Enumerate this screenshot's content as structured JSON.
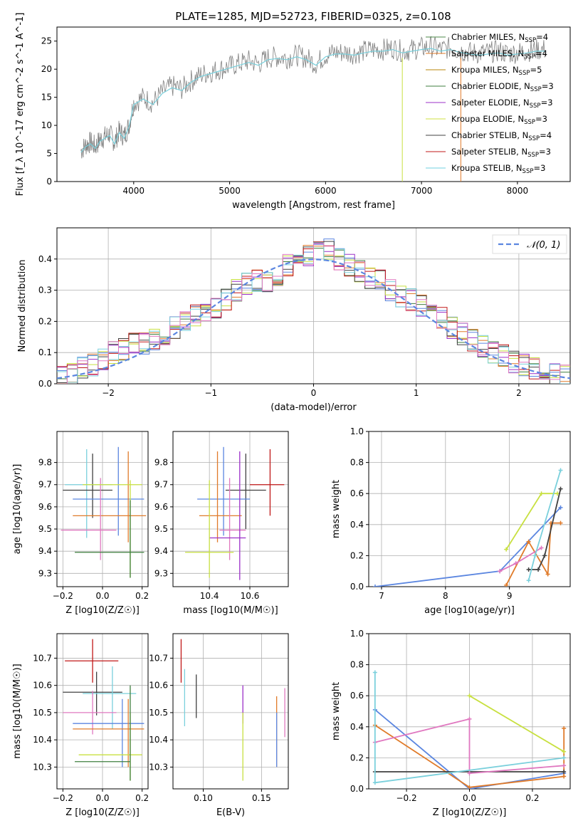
{
  "figure": {
    "title": "PLATE=1285, MJD=52723, FIBERID=0325, z=0.108"
  },
  "legend": [
    {
      "label": "Chabrier MILES, N",
      "sub": "SSP",
      "suffix": "=4",
      "color": "#4c8a48"
    },
    {
      "label": "Salpeter MILES, N",
      "sub": "SSP",
      "suffix": "=4",
      "color": "#e07b2a"
    },
    {
      "label": "Kroupa MILES, N",
      "sub": "SSP",
      "suffix": "=5",
      "color": "#b8860b"
    },
    {
      "label": "Chabrier ELODIE, N",
      "sub": "SSP",
      "suffix": "=3",
      "color": "#3f7f3f"
    },
    {
      "label": "Salpeter ELODIE, N",
      "sub": "SSP",
      "suffix": "=3",
      "color": "#9b30c8"
    },
    {
      "label": "Kroupa ELODIE, N",
      "sub": "SSP",
      "suffix": "=3",
      "color": "#cfe040"
    },
    {
      "label": "Chabrier STELIB, N",
      "sub": "SSP",
      "suffix": "=4",
      "color": "#404040"
    },
    {
      "label": "Salpeter STELIB, N",
      "sub": "SSP",
      "suffix": "=3",
      "color": "#c01818"
    },
    {
      "label": "Kroupa STELIB, N",
      "sub": "SSP",
      "suffix": "=3",
      "color": "#70d0e0"
    }
  ],
  "colors": {
    "data": "#808080",
    "cyan": "#7ad0dc",
    "orange": "#e07b2a",
    "blue": "#5b86e0",
    "pink": "#e078c0",
    "olive": "#c8e040",
    "dark": "#404040",
    "red": "#c01818",
    "purple": "#9b30c8",
    "green": "#3f7f3f",
    "yellow": "#e0e050",
    "grid": "#b0b0b0"
  },
  "chart_data": [
    {
      "type": "line",
      "xlabel": "wavelength [Angstrom, rest frame]",
      "ylabel": "Flux [f_λ 10^-17 erg cm^-2 s^-1 A^-1]",
      "xlim": [
        3200,
        8550
      ],
      "ylim": [
        0,
        27.5
      ],
      "xticks": [
        "4000",
        "5000",
        "6000",
        "7000",
        "8000"
      ],
      "yticks": [
        "0",
        "5",
        "10",
        "15",
        "20",
        "25"
      ],
      "series": [
        {
          "name": "data",
          "x": [
            3450,
            3500,
            3550,
            3600,
            3650,
            3700,
            3750,
            3800,
            3850,
            3900,
            3950,
            4000,
            4100,
            4200,
            4300,
            4400,
            4500,
            4600,
            4700,
            4800,
            4900,
            5000,
            5100,
            5200,
            5300,
            5400,
            5500,
            5600,
            5700,
            5800,
            5900,
            6000,
            6100,
            6200,
            6300,
            6400,
            6500,
            6600,
            6700,
            6800,
            6900,
            7000,
            7100,
            7200,
            7300,
            7400,
            7500,
            7600,
            7700,
            7800,
            7900,
            8000,
            8100,
            8200,
            8300
          ],
          "y": [
            5.5,
            6.5,
            7,
            6.2,
            7.5,
            8,
            8.5,
            7,
            9,
            8,
            10,
            14,
            15,
            14,
            16,
            17,
            16.5,
            18,
            19,
            19.5,
            20,
            20.5,
            21,
            21.5,
            21,
            22,
            22.2,
            22,
            22.5,
            22,
            21,
            22.5,
            23,
            23,
            22.8,
            23.2,
            23.5,
            23.5,
            23.8,
            23.2,
            23.5,
            23.8,
            24,
            23.5,
            23.8,
            23.3,
            23,
            22.8,
            23,
            23.2,
            22.8,
            23,
            23.2,
            23.5,
            23.5
          ]
        }
      ]
    },
    {
      "type": "bar",
      "xlabel": "(data-model)/error",
      "ylabel": "Normed distribution",
      "xlim": [
        -2.5,
        2.5
      ],
      "ylim": [
        0,
        0.5
      ],
      "xticks": [
        "−2",
        "−1",
        "0",
        "1",
        "2"
      ],
      "yticks": [
        "0.0",
        "0.1",
        "0.2",
        "0.3",
        "0.4"
      ],
      "legend": "𝒩(0, 1)",
      "bins": [
        -2.5,
        -2.4,
        -2.3,
        -2.2,
        -2.1,
        -2.0,
        -1.9,
        -1.8,
        -1.7,
        -1.6,
        -1.5,
        -1.4,
        -1.3,
        -1.2,
        -1.1,
        -1.0,
        -0.9,
        -0.8,
        -0.7,
        -0.6,
        -0.5,
        -0.4,
        -0.3,
        -0.2,
        -0.1,
        0.0,
        0.1,
        0.2,
        0.3,
        0.4,
        0.5,
        0.6,
        0.7,
        0.8,
        0.9,
        1.0,
        1.1,
        1.2,
        1.3,
        1.4,
        1.5,
        1.6,
        1.7,
        1.8,
        1.9,
        2.0,
        2.1,
        2.2,
        2.3,
        2.4,
        2.5
      ],
      "hist": [
        0.025,
        0.03,
        0.05,
        0.06,
        0.08,
        0.1,
        0.11,
        0.13,
        0.13,
        0.14,
        0.16,
        0.18,
        0.2,
        0.22,
        0.22,
        0.24,
        0.27,
        0.3,
        0.32,
        0.33,
        0.33,
        0.35,
        0.38,
        0.4,
        0.41,
        0.42,
        0.43,
        0.4,
        0.38,
        0.36,
        0.34,
        0.33,
        0.3,
        0.28,
        0.27,
        0.25,
        0.23,
        0.21,
        0.18,
        0.16,
        0.14,
        0.12,
        0.1,
        0.09,
        0.07,
        0.06,
        0.05,
        0.04,
        0.03,
        0.025
      ]
    },
    {
      "type": "scatter",
      "xlabel": "Z [log10(Z/Z☉)]",
      "ylabel": "age [log10(age/yr)]",
      "xlim": [
        -0.23,
        0.23
      ],
      "ylim": [
        9.24,
        9.94
      ],
      "xticks": [
        "−0.2",
        "0.0",
        "0.2"
      ],
      "yticks": [
        "9.3",
        "9.4",
        "9.5",
        "9.6",
        "9.7",
        "9.8"
      ],
      "points": [
        {
          "x": -0.08,
          "y": 9.7,
          "xe": [
            -0.19,
            0.05
          ],
          "ye": [
            9.46,
            9.86
          ],
          "c": "cyan"
        },
        {
          "x": -0.05,
          "y": 9.675,
          "xe": [
            -0.2,
            0.05
          ],
          "ye": [
            9.55,
            9.84
          ],
          "c": "dark"
        },
        {
          "x": 0.08,
          "y": 9.635,
          "xe": [
            -0.15,
            0.21
          ],
          "ye": [
            9.47,
            9.87
          ],
          "c": "blue"
        },
        {
          "x": 0.13,
          "y": 9.56,
          "xe": [
            -0.15,
            0.22
          ],
          "ye": [
            9.44,
            9.85
          ],
          "c": "orange"
        },
        {
          "x": -0.01,
          "y": 9.495,
          "xe": [
            -0.21,
            0.07
          ],
          "ye": [
            9.36,
            9.73
          ],
          "c": "pink"
        },
        {
          "x": 0.14,
          "y": 9.7,
          "xe": [
            -0.1,
            0.2
          ],
          "ye": [
            9.28,
            9.72
          ],
          "c": "olive"
        },
        {
          "x": 0.14,
          "y": 9.395,
          "xe": [
            -0.14,
            0.21
          ],
          "ye": [
            9.28,
            9.63
          ],
          "c": "green"
        }
      ]
    },
    {
      "type": "scatter",
      "xlabel": "mass [log10(M/M☉)]",
      "ylabel": "",
      "xlim": [
        10.22,
        10.79
      ],
      "ylim": [
        9.24,
        9.94
      ],
      "xticks": [
        "10.4",
        "10.6"
      ],
      "yticks": [
        "9.3",
        "9.4",
        "9.5",
        "9.6",
        "9.7",
        "9.8"
      ],
      "points": [
        {
          "x": 10.7,
          "y": 9.7,
          "xe": [
            10.6,
            10.77
          ],
          "ye": [
            9.56,
            9.86
          ],
          "c": "red"
        },
        {
          "x": 10.58,
          "y": 9.675,
          "xe": [
            10.48,
            10.68
          ],
          "ye": [
            9.5,
            9.84
          ],
          "c": "dark"
        },
        {
          "x": 10.47,
          "y": 9.635,
          "xe": [
            10.34,
            10.6
          ],
          "ye": [
            9.47,
            9.87
          ],
          "c": "blue"
        },
        {
          "x": 10.44,
          "y": 9.56,
          "xe": [
            10.35,
            10.56
          ],
          "ye": [
            9.44,
            9.85
          ],
          "c": "orange"
        },
        {
          "x": 10.5,
          "y": 9.495,
          "xe": [
            10.45,
            10.58
          ],
          "ye": [
            9.36,
            9.73
          ],
          "c": "pink"
        },
        {
          "x": 10.55,
          "y": 9.46,
          "xe": [
            10.4,
            10.58
          ],
          "ye": [
            9.27,
            9.85
          ],
          "c": "purple"
        },
        {
          "x": 10.4,
          "y": 9.395,
          "xe": [
            10.28,
            10.52
          ],
          "ye": [
            9.28,
            9.72
          ],
          "c": "olive"
        }
      ]
    },
    {
      "type": "line",
      "xlabel": "age [log10(age/yr)]",
      "ylabel": "mass weight",
      "xlim": [
        6.8,
        9.95
      ],
      "ylim": [
        0,
        1.0
      ],
      "xticks": [
        "7",
        "8",
        "9"
      ],
      "yticks": [
        "0.0",
        "0.2",
        "0.4",
        "0.6",
        "0.8",
        "1.0"
      ],
      "series": [
        {
          "c": "blue",
          "x": [
            6.9,
            8.85,
            9.8
          ],
          "y": [
            0.0,
            0.1,
            0.51
          ]
        },
        {
          "c": "olive",
          "x": [
            8.95,
            9.5,
            9.75
          ],
          "y": [
            0.24,
            0.6,
            0.6
          ]
        },
        {
          "c": "orange",
          "x": [
            8.95,
            9.3,
            9.6,
            9.65,
            9.8
          ],
          "y": [
            0.01,
            0.29,
            0.08,
            0.41,
            0.41
          ]
        },
        {
          "c": "dark",
          "x": [
            9.3,
            9.45,
            9.55,
            9.8
          ],
          "y": [
            0.11,
            0.11,
            0.2,
            0.63
          ]
        },
        {
          "c": "pink",
          "x": [
            8.85,
            9.1,
            9.5
          ],
          "y": [
            0.1,
            0.15,
            0.25
          ]
        },
        {
          "c": "cyan",
          "x": [
            9.3,
            9.4,
            9.8
          ],
          "y": [
            0.04,
            0.2,
            0.75
          ]
        }
      ]
    },
    {
      "type": "scatter",
      "xlabel": "Z [log10(Z/Z☉)]",
      "ylabel": "mass [log10(M/M☉)]",
      "xlim": [
        -0.23,
        0.23
      ],
      "ylim": [
        10.22,
        10.79
      ],
      "xticks": [
        "−0.2",
        "0.0",
        "0.2"
      ],
      "yticks": [
        "10.3",
        "10.4",
        "10.5",
        "10.6",
        "10.7"
      ],
      "points": [
        {
          "x": -0.05,
          "y": 10.69,
          "xe": [
            -0.19,
            0.08
          ],
          "ye": [
            10.61,
            10.77
          ],
          "c": "red"
        },
        {
          "x": -0.03,
          "y": 10.575,
          "xe": [
            -0.2,
            0.1
          ],
          "ye": [
            10.49,
            10.65
          ],
          "c": "dark"
        },
        {
          "x": 0.05,
          "y": 10.57,
          "xe": [
            -0.1,
            0.17
          ],
          "ye": [
            10.44,
            10.67
          ],
          "c": "cyan"
        },
        {
          "x": -0.05,
          "y": 10.5,
          "xe": [
            -0.2,
            0.07
          ],
          "ye": [
            10.42,
            10.58
          ],
          "c": "pink"
        },
        {
          "x": 0.1,
          "y": 10.46,
          "xe": [
            -0.15,
            0.21
          ],
          "ye": [
            10.3,
            10.55
          ],
          "c": "blue"
        },
        {
          "x": 0.13,
          "y": 10.44,
          "xe": [
            -0.15,
            0.21
          ],
          "ye": [
            10.3,
            10.55
          ],
          "c": "orange"
        },
        {
          "x": 0.14,
          "y": 10.345,
          "xe": [
            -0.12,
            0.2
          ],
          "ye": [
            10.25,
            10.5
          ],
          "c": "olive"
        },
        {
          "x": 0.14,
          "y": 10.32,
          "xe": [
            -0.14,
            0.14
          ],
          "ye": [
            10.25,
            10.6
          ],
          "c": "green"
        }
      ]
    },
    {
      "type": "scatter",
      "xlabel": "E(B-V)",
      "ylabel": "",
      "xlim": [
        0.074,
        0.173
      ],
      "ylim": [
        10.22,
        10.79
      ],
      "xticks": [
        "0.10",
        "0.15"
      ],
      "yticks": [
        "10.3",
        "10.4",
        "10.5",
        "10.6",
        "10.7"
      ],
      "points": [
        {
          "x": 0.081,
          "y": 10.69,
          "ye": [
            10.61,
            10.77
          ],
          "c": "red"
        },
        {
          "x": 0.084,
          "y": 10.55,
          "ye": [
            10.45,
            10.66
          ],
          "c": "cyan"
        },
        {
          "x": 0.094,
          "y": 10.56,
          "ye": [
            10.48,
            10.64
          ],
          "c": "dark"
        },
        {
          "x": 0.134,
          "y": 10.52,
          "ye": [
            10.46,
            10.6
          ],
          "c": "purple"
        },
        {
          "x": 0.134,
          "y": 10.38,
          "ye": [
            10.25,
            10.5
          ],
          "c": "olive"
        },
        {
          "x": 0.163,
          "y": 10.44,
          "ye": [
            10.3,
            10.56
          ],
          "c": "orange"
        },
        {
          "x": 0.163,
          "y": 10.4,
          "ye": [
            10.3,
            10.5
          ],
          "c": "blue"
        },
        {
          "x": 0.17,
          "y": 10.5,
          "ye": [
            10.41,
            10.59
          ],
          "c": "pink"
        }
      ]
    },
    {
      "type": "line",
      "xlabel": "Z [log10(Z/Z☉)]",
      "ylabel": "mass weight",
      "xlim": [
        -0.32,
        0.32
      ],
      "ylim": [
        0,
        1.0
      ],
      "xticks": [
        "−0.2",
        "0.0",
        "0.2"
      ],
      "yticks": [
        "0.0",
        "0.2",
        "0.4",
        "0.6",
        "0.8",
        "1.0"
      ],
      "series": [
        {
          "c": "blue",
          "x": [
            -0.3,
            0.0,
            0.3
          ],
          "y": [
            0.51,
            0.0,
            0.1
          ]
        },
        {
          "c": "orange",
          "x": [
            -0.3,
            0.0,
            0.3,
            0.3
          ],
          "y": [
            0.41,
            0.01,
            0.08,
            0.39
          ]
        },
        {
          "c": "olive",
          "x": [
            0.0,
            0.3
          ],
          "y": [
            0.6,
            0.24
          ]
        },
        {
          "c": "dark",
          "x": [
            -0.3,
            0.3
          ],
          "y": [
            0.11,
            0.11
          ]
        },
        {
          "c": "pink",
          "x": [
            -0.3,
            0.0,
            0.0,
            0.3
          ],
          "y": [
            0.3,
            0.45,
            0.1,
            0.15
          ]
        },
        {
          "c": "cyan",
          "x": [
            -0.3,
            -0.3,
            0.3
          ],
          "y": [
            0.75,
            0.04,
            0.2
          ]
        }
      ]
    }
  ]
}
